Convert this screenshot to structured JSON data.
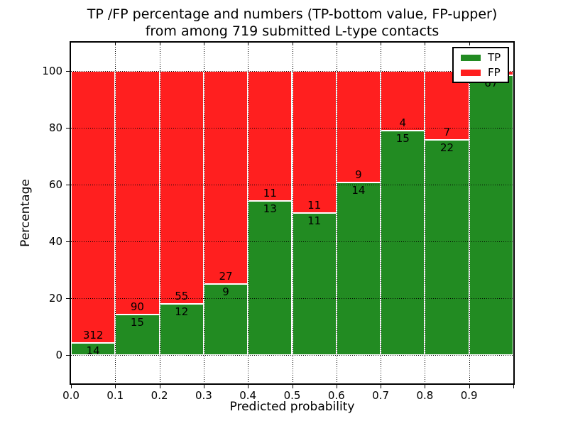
{
  "chart_data": {
    "type": "bar",
    "stacked": true,
    "title_lines": [
      "TP /FP percentage and numbers (TP-bottom value, FP-upper)",
      "from among 719 submitted L-type contacts"
    ],
    "total_contacts": 719,
    "xlabel": "Predicted probability",
    "ylabel": "Percentage",
    "categories": [
      "0.0-0.1",
      "0.1-0.2",
      "0.2-0.3",
      "0.3-0.4",
      "0.4-0.5",
      "0.5-0.6",
      "0.6-0.7",
      "0.7-0.8",
      "0.8-0.9",
      "0.9-1.0"
    ],
    "series": [
      {
        "name": "TP",
        "color": "#228b22",
        "values": [
          14,
          15,
          12,
          9,
          13,
          11,
          14,
          15,
          22,
          67
        ]
      },
      {
        "name": "FP",
        "color": "#ff1f1f",
        "values": [
          312,
          90,
          55,
          27,
          11,
          11,
          9,
          4,
          7,
          1
        ]
      }
    ],
    "labels": {
      "tp": [
        "14",
        "15",
        "12",
        "9",
        "13",
        "11",
        "14",
        "15",
        "22",
        "67"
      ],
      "fp": [
        "312",
        "90",
        "55",
        "27",
        "11",
        "11",
        "9",
        "4",
        "7",
        ""
      ]
    },
    "x_tick_labels": [
      "0.0",
      "0.1",
      "0.2",
      "0.3",
      "0.4",
      "0.5",
      "0.6",
      "0.7",
      "0.8",
      "0.9"
    ],
    "y_ticks": [
      0,
      20,
      40,
      60,
      80,
      100
    ],
    "xlim": [
      0,
      1
    ],
    "ylim": [
      -10,
      110
    ],
    "grid": {
      "style": "dotted",
      "color": "#000000"
    },
    "legend": {
      "position": "upper right",
      "entries": [
        {
          "label": "TP",
          "color": "#228b22"
        },
        {
          "label": "FP",
          "color": "#ff1f1f"
        }
      ]
    },
    "bar_edge_color": "#ffffff",
    "axis_color": "#000000"
  }
}
